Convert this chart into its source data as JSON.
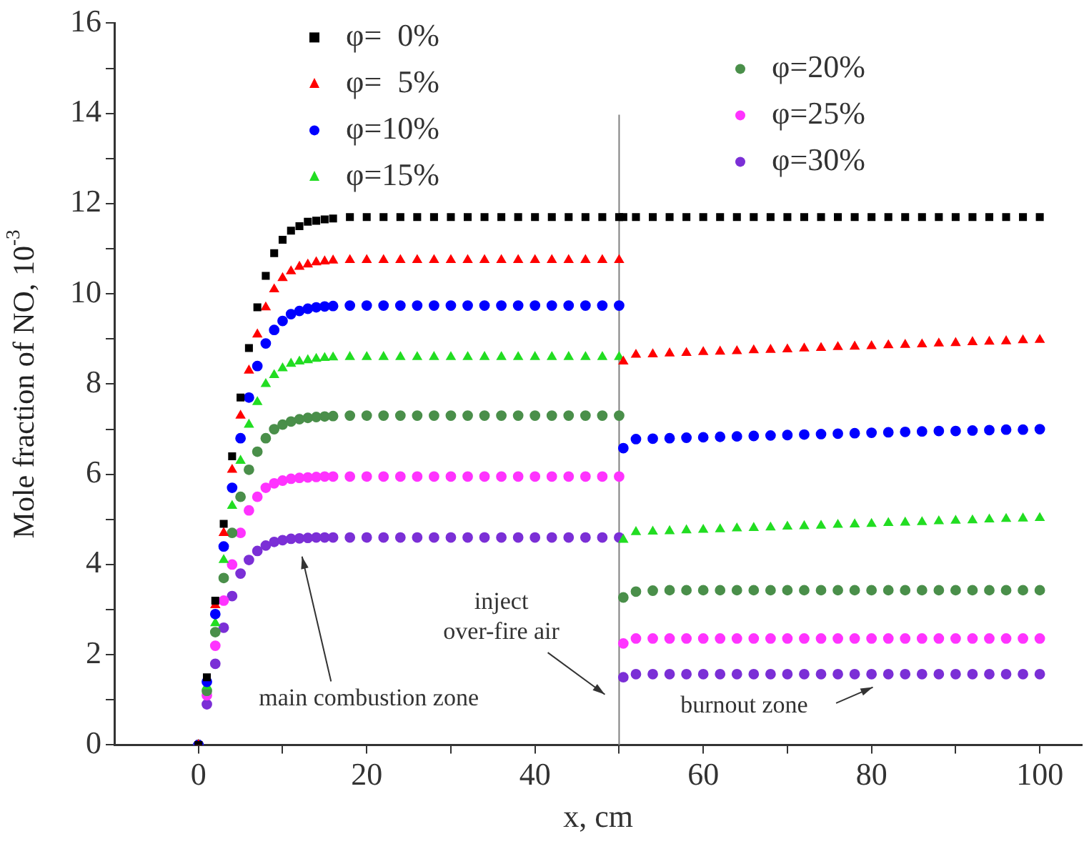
{
  "chart_data": {
    "type": "scatter",
    "xlabel": "x, cm",
    "ylabel": "Mole fraction of NO, 10$^{-3}$",
    "x": [
      0,
      1,
      2,
      3,
      4,
      5,
      6,
      7,
      8,
      9,
      10,
      11,
      12,
      13,
      14,
      15,
      16,
      18,
      20,
      22,
      24,
      26,
      28,
      30,
      32,
      34,
      36,
      38,
      40,
      42,
      44,
      46,
      48,
      50,
      50.5,
      52,
      54,
      56,
      58,
      60,
      62,
      64,
      66,
      68,
      70,
      72,
      74,
      76,
      78,
      80,
      82,
      84,
      86,
      88,
      90,
      92,
      94,
      96,
      98,
      100
    ],
    "series": [
      {
        "name": "φ=  0%",
        "color": "#000000",
        "marker": "square",
        "values": [
          0,
          1.5,
          3.2,
          4.9,
          6.4,
          7.7,
          8.8,
          9.7,
          10.4,
          10.9,
          11.2,
          11.4,
          11.5,
          11.6,
          11.62,
          11.65,
          11.67,
          11.7,
          11.7,
          11.7,
          11.7,
          11.7,
          11.7,
          11.7,
          11.7,
          11.7,
          11.7,
          11.7,
          11.7,
          11.7,
          11.7,
          11.7,
          11.7,
          11.7,
          11.7,
          11.7,
          11.7,
          11.7,
          11.7,
          11.7,
          11.7,
          11.7,
          11.7,
          11.7,
          11.7,
          11.7,
          11.7,
          11.7,
          11.7,
          11.7,
          11.7,
          11.7,
          11.7,
          11.7,
          11.7,
          11.7,
          11.7,
          11.7,
          11.7,
          11.7
        ]
      },
      {
        "name": "φ=  5%",
        "color": "#ff0000",
        "marker": "triangle",
        "values": [
          0,
          null,
          3.1,
          4.7,
          6.1,
          7.3,
          8.3,
          9.1,
          9.7,
          10.1,
          10.35,
          10.5,
          10.6,
          10.65,
          10.7,
          10.72,
          10.74,
          10.75,
          10.75,
          10.75,
          10.75,
          10.75,
          10.75,
          10.75,
          10.75,
          10.75,
          10.75,
          10.75,
          10.75,
          10.75,
          10.75,
          10.75,
          10.75,
          10.75,
          8.5,
          8.65,
          8.66,
          8.68,
          8.69,
          8.71,
          8.72,
          8.73,
          8.75,
          8.76,
          8.77,
          8.79,
          8.8,
          8.82,
          8.83,
          8.84,
          8.86,
          8.87,
          8.88,
          8.9,
          8.91,
          8.93,
          8.94,
          8.95,
          8.97,
          8.98
        ]
      },
      {
        "name": "φ=10%",
        "color": "#0000ff",
        "marker": "circle",
        "values": [
          0,
          1.4,
          2.9,
          4.4,
          5.7,
          6.8,
          7.7,
          8.4,
          8.9,
          9.2,
          9.4,
          9.55,
          9.62,
          9.67,
          9.7,
          9.72,
          9.73,
          9.74,
          9.74,
          9.74,
          9.74,
          9.74,
          9.74,
          9.74,
          9.74,
          9.74,
          9.74,
          9.74,
          9.74,
          9.74,
          9.74,
          9.74,
          9.74,
          9.74,
          6.58,
          6.78,
          6.79,
          6.8,
          6.81,
          6.82,
          6.83,
          6.84,
          6.85,
          6.86,
          6.87,
          6.88,
          6.89,
          6.9,
          6.91,
          6.92,
          6.93,
          6.94,
          6.95,
          6.96,
          6.96,
          6.97,
          6.98,
          6.99,
          6.99,
          7.0
        ]
      },
      {
        "name": "φ=15%",
        "color": "#22dd22",
        "marker": "triangle",
        "values": [
          0,
          1.3,
          2.7,
          4.1,
          5.3,
          6.3,
          7.1,
          7.6,
          8.0,
          8.2,
          8.35,
          8.45,
          8.5,
          8.53,
          8.56,
          8.58,
          8.59,
          8.6,
          8.6,
          8.6,
          8.6,
          8.6,
          8.6,
          8.6,
          8.6,
          8.6,
          8.6,
          8.6,
          8.6,
          8.6,
          8.6,
          8.6,
          8.6,
          8.6,
          4.55,
          4.72,
          4.73,
          4.74,
          4.76,
          4.77,
          4.78,
          4.8,
          4.81,
          4.82,
          4.84,
          4.85,
          4.86,
          4.88,
          4.89,
          4.9,
          4.92,
          4.93,
          4.94,
          4.96,
          4.97,
          4.98,
          5.0,
          5.01,
          5.02,
          5.03
        ]
      },
      {
        "name": "φ=20%",
        "color": "#4a8f4a",
        "marker": "circle",
        "values": [
          0,
          1.2,
          2.5,
          3.7,
          4.7,
          5.5,
          6.1,
          6.5,
          6.8,
          7.0,
          7.1,
          7.17,
          7.22,
          7.25,
          7.27,
          7.28,
          7.29,
          7.3,
          7.3,
          7.3,
          7.3,
          7.3,
          7.3,
          7.3,
          7.3,
          7.3,
          7.3,
          7.3,
          7.3,
          7.3,
          7.3,
          7.3,
          7.3,
          7.3,
          3.27,
          3.4,
          3.42,
          3.43,
          3.43,
          3.43,
          3.43,
          3.43,
          3.43,
          3.43,
          3.43,
          3.43,
          3.43,
          3.43,
          3.43,
          3.43,
          3.43,
          3.43,
          3.43,
          3.43,
          3.43,
          3.43,
          3.43,
          3.43,
          3.43,
          3.43
        ]
      },
      {
        "name": "φ=25%",
        "color": "#ff33ff",
        "marker": "circle",
        "values": [
          0,
          1.1,
          2.2,
          3.2,
          4.0,
          4.7,
          5.2,
          5.5,
          5.7,
          5.8,
          5.86,
          5.9,
          5.92,
          5.93,
          5.94,
          5.95,
          5.95,
          5.95,
          5.95,
          5.95,
          5.95,
          5.95,
          5.95,
          5.95,
          5.95,
          5.95,
          5.95,
          5.95,
          5.95,
          5.95,
          5.95,
          5.95,
          5.95,
          5.95,
          2.25,
          2.36,
          2.36,
          2.36,
          2.36,
          2.36,
          2.36,
          2.36,
          2.36,
          2.36,
          2.36,
          2.36,
          2.36,
          2.36,
          2.36,
          2.36,
          2.36,
          2.36,
          2.36,
          2.36,
          2.36,
          2.36,
          2.36,
          2.36,
          2.36,
          2.36
        ]
      },
      {
        "name": "φ=30%",
        "color": "#7b2fd6",
        "marker": "circle",
        "values": [
          0,
          0.9,
          1.8,
          2.6,
          3.3,
          3.8,
          4.1,
          4.3,
          4.42,
          4.5,
          4.54,
          4.57,
          4.58,
          4.59,
          4.6,
          4.6,
          4.6,
          4.6,
          4.6,
          4.6,
          4.6,
          4.6,
          4.6,
          4.6,
          4.6,
          4.6,
          4.6,
          4.6,
          4.6,
          4.6,
          4.6,
          4.6,
          4.6,
          4.6,
          1.5,
          1.57,
          1.57,
          1.57,
          1.57,
          1.57,
          1.57,
          1.57,
          1.57,
          1.57,
          1.57,
          1.57,
          1.57,
          1.57,
          1.57,
          1.57,
          1.57,
          1.57,
          1.57,
          1.57,
          1.57,
          1.57,
          1.57,
          1.57,
          1.57,
          1.57
        ]
      }
    ],
    "xlim": [
      -10,
      105
    ],
    "xticks": [
      0,
      {
        "value": 10,
        "label": null
      },
      20,
      {
        "value": 30,
        "label": null
      },
      40,
      {
        "value": 50,
        "label": null
      },
      60,
      {
        "value": 70,
        "label": null
      },
      80,
      {
        "value": 90,
        "label": null
      },
      100
    ],
    "ylim": [
      0,
      16
    ],
    "yticks": [
      0,
      {
        "value": 1,
        "label": null
      },
      2,
      {
        "value": 3,
        "label": null
      },
      4,
      {
        "value": 5,
        "label": null
      },
      6,
      {
        "value": 7,
        "label": null
      },
      8,
      {
        "value": 9,
        "label": null
      },
      10,
      {
        "value": 11,
        "label": null
      },
      12,
      {
        "value": 13,
        "label": null
      },
      14,
      {
        "value": 15,
        "label": null
      },
      16
    ],
    "ref_lines": [
      {
        "axis": "x",
        "value": 50,
        "color": "#808080"
      }
    ],
    "annotations": [
      "main combustion zone",
      "inject\nover-fire air",
      "burnout zone"
    ],
    "grid": false,
    "legend": "top"
  }
}
